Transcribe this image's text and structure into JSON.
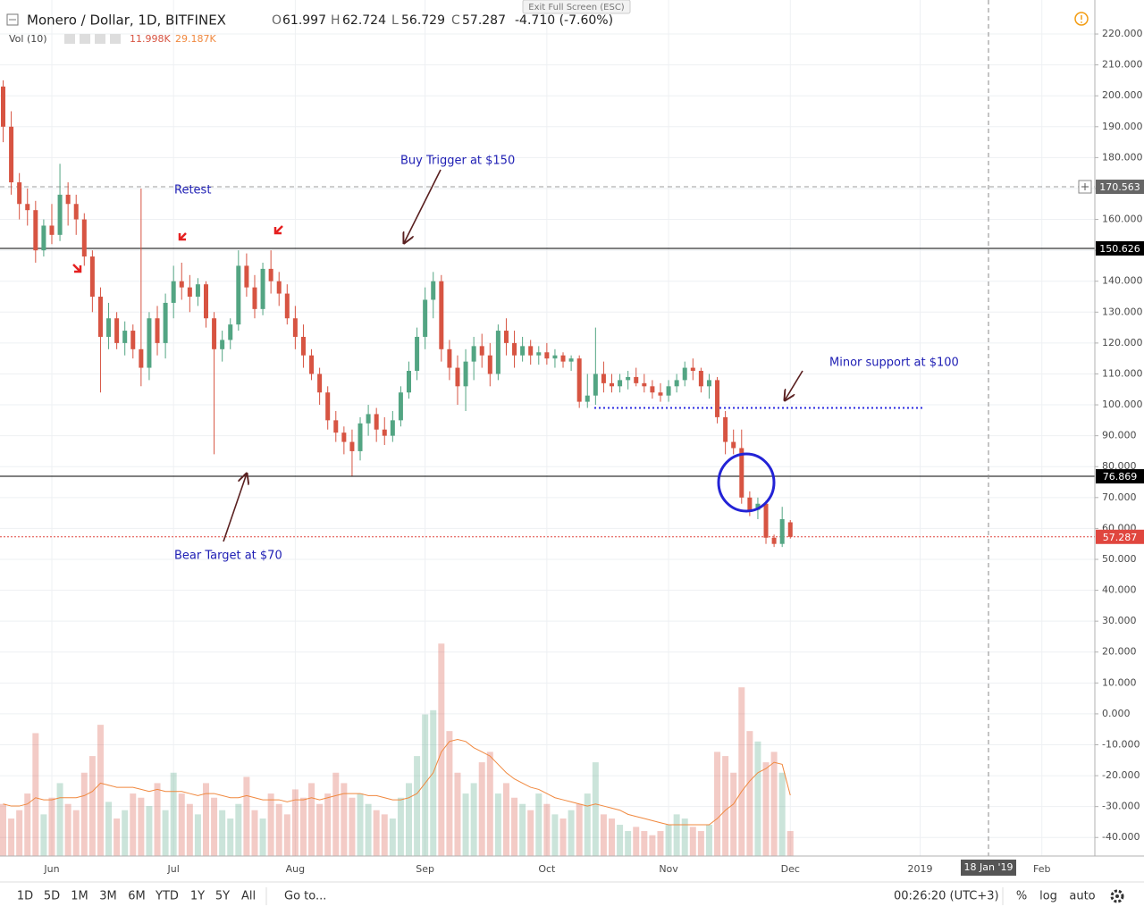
{
  "header": {
    "symbol": "Monero / Dollar, 1D, BITFINEX",
    "ohlc": [
      "O",
      "61.997",
      "H",
      "62.724",
      "L",
      "56.729",
      "C",
      "57.287"
    ],
    "change": "-4.710 (-7.60%)",
    "volume_label": "Vol (10)",
    "volume_value": "11.998K",
    "volume_ma": "29.187K",
    "exit": "Exit Full Screen (ESC)"
  },
  "toolbar": {
    "ranges": [
      "1D",
      "5D",
      "1M",
      "3M",
      "6M",
      "YTD",
      "1Y",
      "5Y",
      "All"
    ],
    "goto": "Go to...",
    "clock": "00:26:20 (UTC+3)",
    "options": [
      "%",
      "log",
      "auto"
    ]
  },
  "chart_data": {
    "type": "candlestick",
    "categories": [
      null,
      null,
      null,
      null,
      null,
      null,
      "Jun",
      null,
      null,
      null,
      null,
      null,
      null,
      null,
      null,
      null,
      null,
      null,
      null,
      null,
      null,
      "Jul",
      null,
      null,
      null,
      null,
      null,
      null,
      null,
      null,
      null,
      null,
      null,
      null,
      null,
      null,
      "Aug",
      null,
      null,
      null,
      null,
      null,
      null,
      null,
      null,
      null,
      null,
      null,
      null,
      null,
      null,
      null,
      "Sep",
      null,
      null,
      null,
      null,
      null,
      null,
      null,
      null,
      null,
      null,
      null,
      null,
      null,
      null,
      "Oct",
      null,
      null,
      null,
      null,
      null,
      null,
      null,
      null,
      null,
      null,
      null,
      null,
      null,
      null,
      "Nov",
      null,
      null,
      null,
      null,
      null,
      null,
      null,
      null,
      null,
      null,
      null,
      null,
      null,
      null,
      "Dec",
      null,
      null,
      null,
      null,
      null,
      null,
      null,
      null,
      null,
      null,
      null,
      null,
      null,
      null,
      null,
      "2019",
      null,
      null,
      null,
      null,
      null,
      null,
      null,
      null,
      null,
      null,
      null,
      null,
      null,
      null,
      "Feb",
      null,
      null,
      null,
      null,
      null,
      null
    ],
    "open": [
      203,
      190,
      172,
      165,
      163,
      150,
      158,
      155,
      168,
      165,
      160,
      148,
      135,
      122,
      128,
      120,
      124,
      118,
      112,
      128,
      120,
      133,
      140,
      138,
      135,
      139,
      128,
      118,
      121,
      126,
      145,
      138,
      131,
      144,
      140,
      136,
      128,
      122,
      116,
      110,
      104,
      95,
      91,
      88,
      85,
      94,
      97,
      92,
      90,
      95,
      104,
      111,
      122,
      134,
      140,
      118,
      112,
      106,
      114,
      119,
      116,
      110,
      124,
      120,
      116,
      119,
      116,
      117,
      115,
      116,
      114,
      115,
      101,
      103,
      110,
      107,
      106,
      108,
      109,
      107,
      106,
      104,
      103,
      106,
      108,
      112,
      111,
      106,
      108,
      96,
      88,
      86,
      70,
      66,
      68,
      57,
      55,
      61.997,
      null,
      null,
      null,
      null,
      null,
      null,
      null,
      null,
      null,
      null,
      null,
      null,
      null,
      null,
      null,
      null,
      null,
      null,
      null,
      null,
      null,
      null,
      null,
      null,
      null,
      null,
      null,
      null,
      null,
      null,
      null,
      null,
      null,
      null,
      null,
      null,
      null
    ],
    "high": [
      205,
      195,
      175,
      170,
      166,
      160,
      165,
      178,
      172,
      168,
      162,
      150,
      138,
      133,
      130,
      127,
      126,
      170,
      130,
      132,
      136,
      145,
      146,
      142,
      141,
      140,
      130,
      124,
      128,
      150,
      149,
      142,
      146,
      150,
      143,
      139,
      132,
      126,
      118,
      112,
      106,
      98,
      93,
      92,
      96,
      100,
      99,
      96,
      98,
      106,
      114,
      125,
      138,
      143,
      142,
      121,
      116,
      118,
      122,
      123,
      120,
      126,
      128,
      124,
      122,
      121,
      119,
      120,
      118,
      117,
      116,
      116,
      110,
      125,
      114,
      110,
      110,
      111,
      112,
      110,
      108,
      107,
      108,
      110,
      114,
      115,
      112,
      110,
      109,
      98,
      92,
      92,
      72,
      70,
      69,
      58,
      67,
      62.724,
      null,
      null,
      null,
      null,
      null,
      null,
      null,
      null,
      null,
      null,
      null,
      null,
      null,
      null,
      null,
      null,
      null,
      null,
      null,
      null,
      null,
      null,
      null,
      null,
      null,
      null,
      null,
      null,
      null,
      null,
      null,
      null,
      null,
      null,
      null,
      null,
      null
    ],
    "low": [
      185,
      168,
      160,
      158,
      146,
      148,
      152,
      153,
      158,
      155,
      145,
      130,
      104,
      118,
      118,
      116,
      115,
      106,
      108,
      116,
      115,
      128,
      134,
      130,
      132,
      125,
      84,
      114,
      118,
      124,
      135,
      128,
      129,
      136,
      132,
      126,
      118,
      112,
      108,
      100,
      92,
      88,
      84,
      77,
      82,
      90,
      88,
      87,
      88,
      93,
      102,
      108,
      118,
      128,
      114,
      108,
      100,
      98,
      108,
      112,
      106,
      108,
      116,
      112,
      114,
      113,
      113,
      113,
      112,
      112,
      111,
      99,
      99,
      100,
      104,
      104,
      104,
      105,
      106,
      104,
      102,
      101,
      101,
      104,
      106,
      108,
      104,
      102,
      94,
      84,
      84,
      68,
      64,
      63,
      55,
      54,
      54,
      56.729,
      null,
      null,
      null,
      null,
      null,
      null,
      null,
      null,
      null,
      null,
      null,
      null,
      null,
      null,
      null,
      null,
      null,
      null,
      null,
      null,
      null,
      null,
      null,
      null,
      null,
      null,
      null,
      null,
      null,
      null,
      null,
      null,
      null,
      null,
      null,
      null,
      null
    ],
    "close": [
      190,
      172,
      165,
      163,
      150,
      158,
      155,
      168,
      165,
      160,
      148,
      135,
      122,
      128,
      120,
      124,
      118,
      112,
      128,
      120,
      133,
      140,
      138,
      135,
      139,
      128,
      118,
      121,
      126,
      145,
      138,
      131,
      144,
      140,
      136,
      128,
      122,
      116,
      110,
      104,
      95,
      91,
      88,
      85,
      94,
      97,
      92,
      90,
      95,
      104,
      111,
      122,
      134,
      140,
      118,
      112,
      106,
      114,
      119,
      116,
      110,
      124,
      120,
      116,
      119,
      116,
      117,
      115,
      116,
      114,
      115,
      101,
      103,
      110,
      107,
      106,
      108,
      109,
      107,
      106,
      104,
      103,
      106,
      108,
      112,
      111,
      106,
      108,
      96,
      88,
      86,
      70,
      66,
      68,
      57,
      55,
      63,
      57.287,
      null,
      null,
      null,
      null,
      null,
      null,
      null,
      null,
      null,
      null,
      null,
      null,
      null,
      null,
      null,
      null,
      null,
      null,
      null,
      null,
      null,
      null,
      null,
      null,
      null,
      null,
      null,
      null,
      null,
      null,
      null,
      null,
      null,
      null,
      null,
      null,
      null
    ],
    "up_color": "#53a583",
    "down_color": "#d75442",
    "volume": {
      "ylim": [
        0,
        411
      ],
      "ma_color": "#f0883e",
      "values": [
        25,
        18,
        22,
        30,
        59,
        20,
        28,
        35,
        25,
        22,
        40,
        48,
        63,
        26,
        18,
        22,
        30,
        28,
        24,
        35,
        22,
        40,
        30,
        25,
        20,
        35,
        28,
        22,
        18,
        25,
        38,
        22,
        18,
        30,
        25,
        20,
        32,
        28,
        35,
        25,
        30,
        40,
        35,
        28,
        30,
        25,
        22,
        20,
        18,
        28,
        35,
        48,
        68,
        70,
        102,
        60,
        40,
        30,
        35,
        45,
        50,
        30,
        35,
        28,
        25,
        22,
        30,
        25,
        20,
        18,
        22,
        25,
        30,
        45,
        20,
        18,
        15,
        12,
        14,
        12,
        10,
        12,
        15,
        20,
        18,
        14,
        12,
        15,
        50,
        48,
        40,
        81,
        60,
        55,
        45,
        50,
        40,
        11.998,
        null,
        null,
        null,
        null,
        null,
        null,
        null,
        null,
        null,
        null,
        null,
        null,
        null,
        null,
        null,
        null,
        null,
        null,
        null,
        null,
        null,
        null,
        null,
        null,
        null,
        null,
        null,
        null,
        null,
        null,
        null,
        null,
        null,
        null,
        null,
        null,
        null
      ],
      "ma": [
        25,
        24,
        24,
        25,
        28,
        27,
        27,
        28,
        28,
        28,
        29,
        31,
        35,
        34,
        33,
        33,
        33,
        32,
        31,
        32,
        31,
        31,
        31,
        30,
        29,
        30,
        30,
        29,
        28,
        28,
        29,
        28,
        27,
        27,
        27,
        26,
        27,
        27,
        28,
        27,
        28,
        29,
        30,
        30,
        30,
        29,
        29,
        28,
        27,
        27,
        28,
        30,
        35,
        40,
        50,
        55,
        56,
        55,
        52,
        50,
        48,
        44,
        40,
        37,
        35,
        33,
        32,
        30,
        28,
        27,
        26,
        25,
        24,
        25,
        24,
        23,
        22,
        20,
        19,
        18,
        17,
        16,
        15,
        15,
        15,
        15,
        15,
        15,
        18,
        22,
        25,
        31,
        36,
        40,
        42,
        45,
        44,
        29.187,
        null,
        null,
        null,
        null,
        null,
        null,
        null,
        null,
        null,
        null,
        null,
        null,
        null,
        null,
        null,
        null,
        null,
        null,
        null,
        null,
        null,
        null,
        null,
        null,
        null,
        null,
        null,
        null,
        null,
        null,
        null,
        null,
        null,
        null,
        null,
        null,
        null
      ]
    },
    "ylim": [
      -46,
      231
    ],
    "yticks": [
      {
        "value": 220,
        "label": "220.000"
      },
      {
        "value": 210,
        "label": "210.000"
      },
      {
        "value": 200,
        "label": "200.000"
      },
      {
        "value": 190,
        "label": "190.000"
      },
      {
        "value": 180,
        "label": "180.000"
      },
      {
        "value": 170,
        "label": "170.000"
      },
      {
        "value": 160,
        "label": "160.000"
      },
      {
        "value": 150,
        "label": "150.000"
      },
      {
        "value": 140,
        "label": "140.000"
      },
      {
        "value": 130,
        "label": "130.000"
      },
      {
        "value": 120,
        "label": "120.000"
      },
      {
        "value": 110,
        "label": "110.000"
      },
      {
        "value": 100,
        "label": "100.000"
      },
      {
        "value": 90,
        "label": "90.000"
      },
      {
        "value": 80,
        "label": "80.000"
      },
      {
        "value": 70,
        "label": "70.000"
      },
      {
        "value": 60,
        "label": "60.000"
      },
      {
        "value": 50,
        "label": "50.000"
      },
      {
        "value": 40,
        "label": "40.000"
      },
      {
        "value": 30,
        "label": "30.000"
      },
      {
        "value": 20,
        "label": "20.000"
      },
      {
        "value": 10,
        "label": "10.000"
      },
      {
        "value": 0,
        "label": "0.000"
      },
      {
        "value": -10,
        "label": "-10.000"
      },
      {
        "value": -20,
        "label": "-20.000"
      },
      {
        "value": -30,
        "label": "-30.000"
      },
      {
        "value": -40,
        "label": "-40.000"
      }
    ],
    "grid": true,
    "hlines": [
      {
        "value": 170.563,
        "color": "#9e9e9e",
        "style": "dashed"
      },
      {
        "value": 150.626,
        "color": "#000000",
        "style": "solid"
      },
      {
        "value": 76.869,
        "color": "#000000",
        "style": "solid"
      },
      {
        "value": 57.287,
        "color": "#e0463e",
        "style": "dotted"
      }
    ],
    "support_line": {
      "value": 99,
      "color": "#2a2ae0"
    },
    "annotations": [
      "Buy Trigger at $150",
      "Retest",
      "Minor support at $100",
      "Bear Target at $70"
    ],
    "crosshair_label": "18 Jan '19"
  }
}
